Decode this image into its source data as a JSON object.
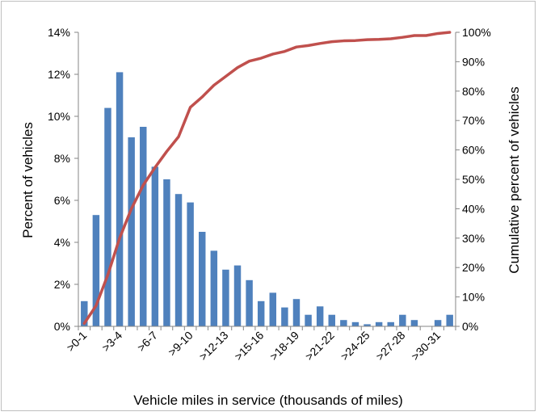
{
  "chart_data": {
    "type": "bar",
    "title": "",
    "xlabel": "Vehicle miles in service (thousands of miles)",
    "ylabel": "Percent of vehicles",
    "y2label": "Cumulative percent of vehicles",
    "categories": [
      ">0-1",
      ">1-2",
      ">2-3",
      ">3-4",
      ">4-5",
      ">5-6",
      ">6-7",
      ">7-8",
      ">8-9",
      ">9-10",
      ">10-11",
      ">11-12",
      ">12-13",
      ">13-14",
      ">14-15",
      ">15-16",
      ">16-17",
      ">17-18",
      ">18-19",
      ">19-20",
      ">20-21",
      ">21-22",
      ">22-23",
      ">23-24",
      ">24-25",
      ">25-26",
      ">26-27",
      ">27-28",
      ">28-29",
      ">29-30",
      ">30-31",
      ">31-32"
    ],
    "shown_category_labels": [
      ">0-1",
      ">3-4",
      ">6-7",
      ">9-10",
      ">12-13",
      ">15-16",
      ">18-19",
      ">21-22",
      ">24-25",
      ">27-28",
      ">30-31"
    ],
    "ylim": [
      0,
      14
    ],
    "yticks": [
      "0%",
      "2%",
      "4%",
      "6%",
      "8%",
      "10%",
      "12%",
      "14%"
    ],
    "y2lim": [
      0,
      100
    ],
    "y2ticks": [
      "0%",
      "10%",
      "20%",
      "30%",
      "40%",
      "50%",
      "60%",
      "70%",
      "80%",
      "90%",
      "100%"
    ],
    "series": [
      {
        "type": "bar",
        "axis": "left",
        "color": "#4f81bd",
        "values": [
          1.2,
          5.3,
          10.4,
          12.1,
          9.0,
          9.5,
          7.6,
          7.0,
          6.3,
          5.9,
          4.5,
          3.6,
          2.7,
          2.9,
          2.2,
          1.2,
          1.6,
          0.9,
          1.3,
          0.55,
          0.95,
          0.55,
          0.3,
          0.2,
          0.1,
          0.2,
          0.2,
          0.55,
          0.3,
          0.0,
          0.3,
          0.55
        ]
      },
      {
        "type": "line",
        "axis": "right",
        "color": "#c0504d",
        "values": [
          1.0,
          7.0,
          17.5,
          30.0,
          40.0,
          48.0,
          54.0,
          59.5,
          64.5,
          74.5,
          78.0,
          82.0,
          85.0,
          88.0,
          90.2,
          91.2,
          92.6,
          93.5,
          95.0,
          95.5,
          96.2,
          96.8,
          97.1,
          97.2,
          97.5,
          97.6,
          97.8,
          98.3,
          98.9,
          98.9,
          99.6,
          100.0
        ]
      }
    ],
    "grid": false,
    "legend": "none"
  }
}
